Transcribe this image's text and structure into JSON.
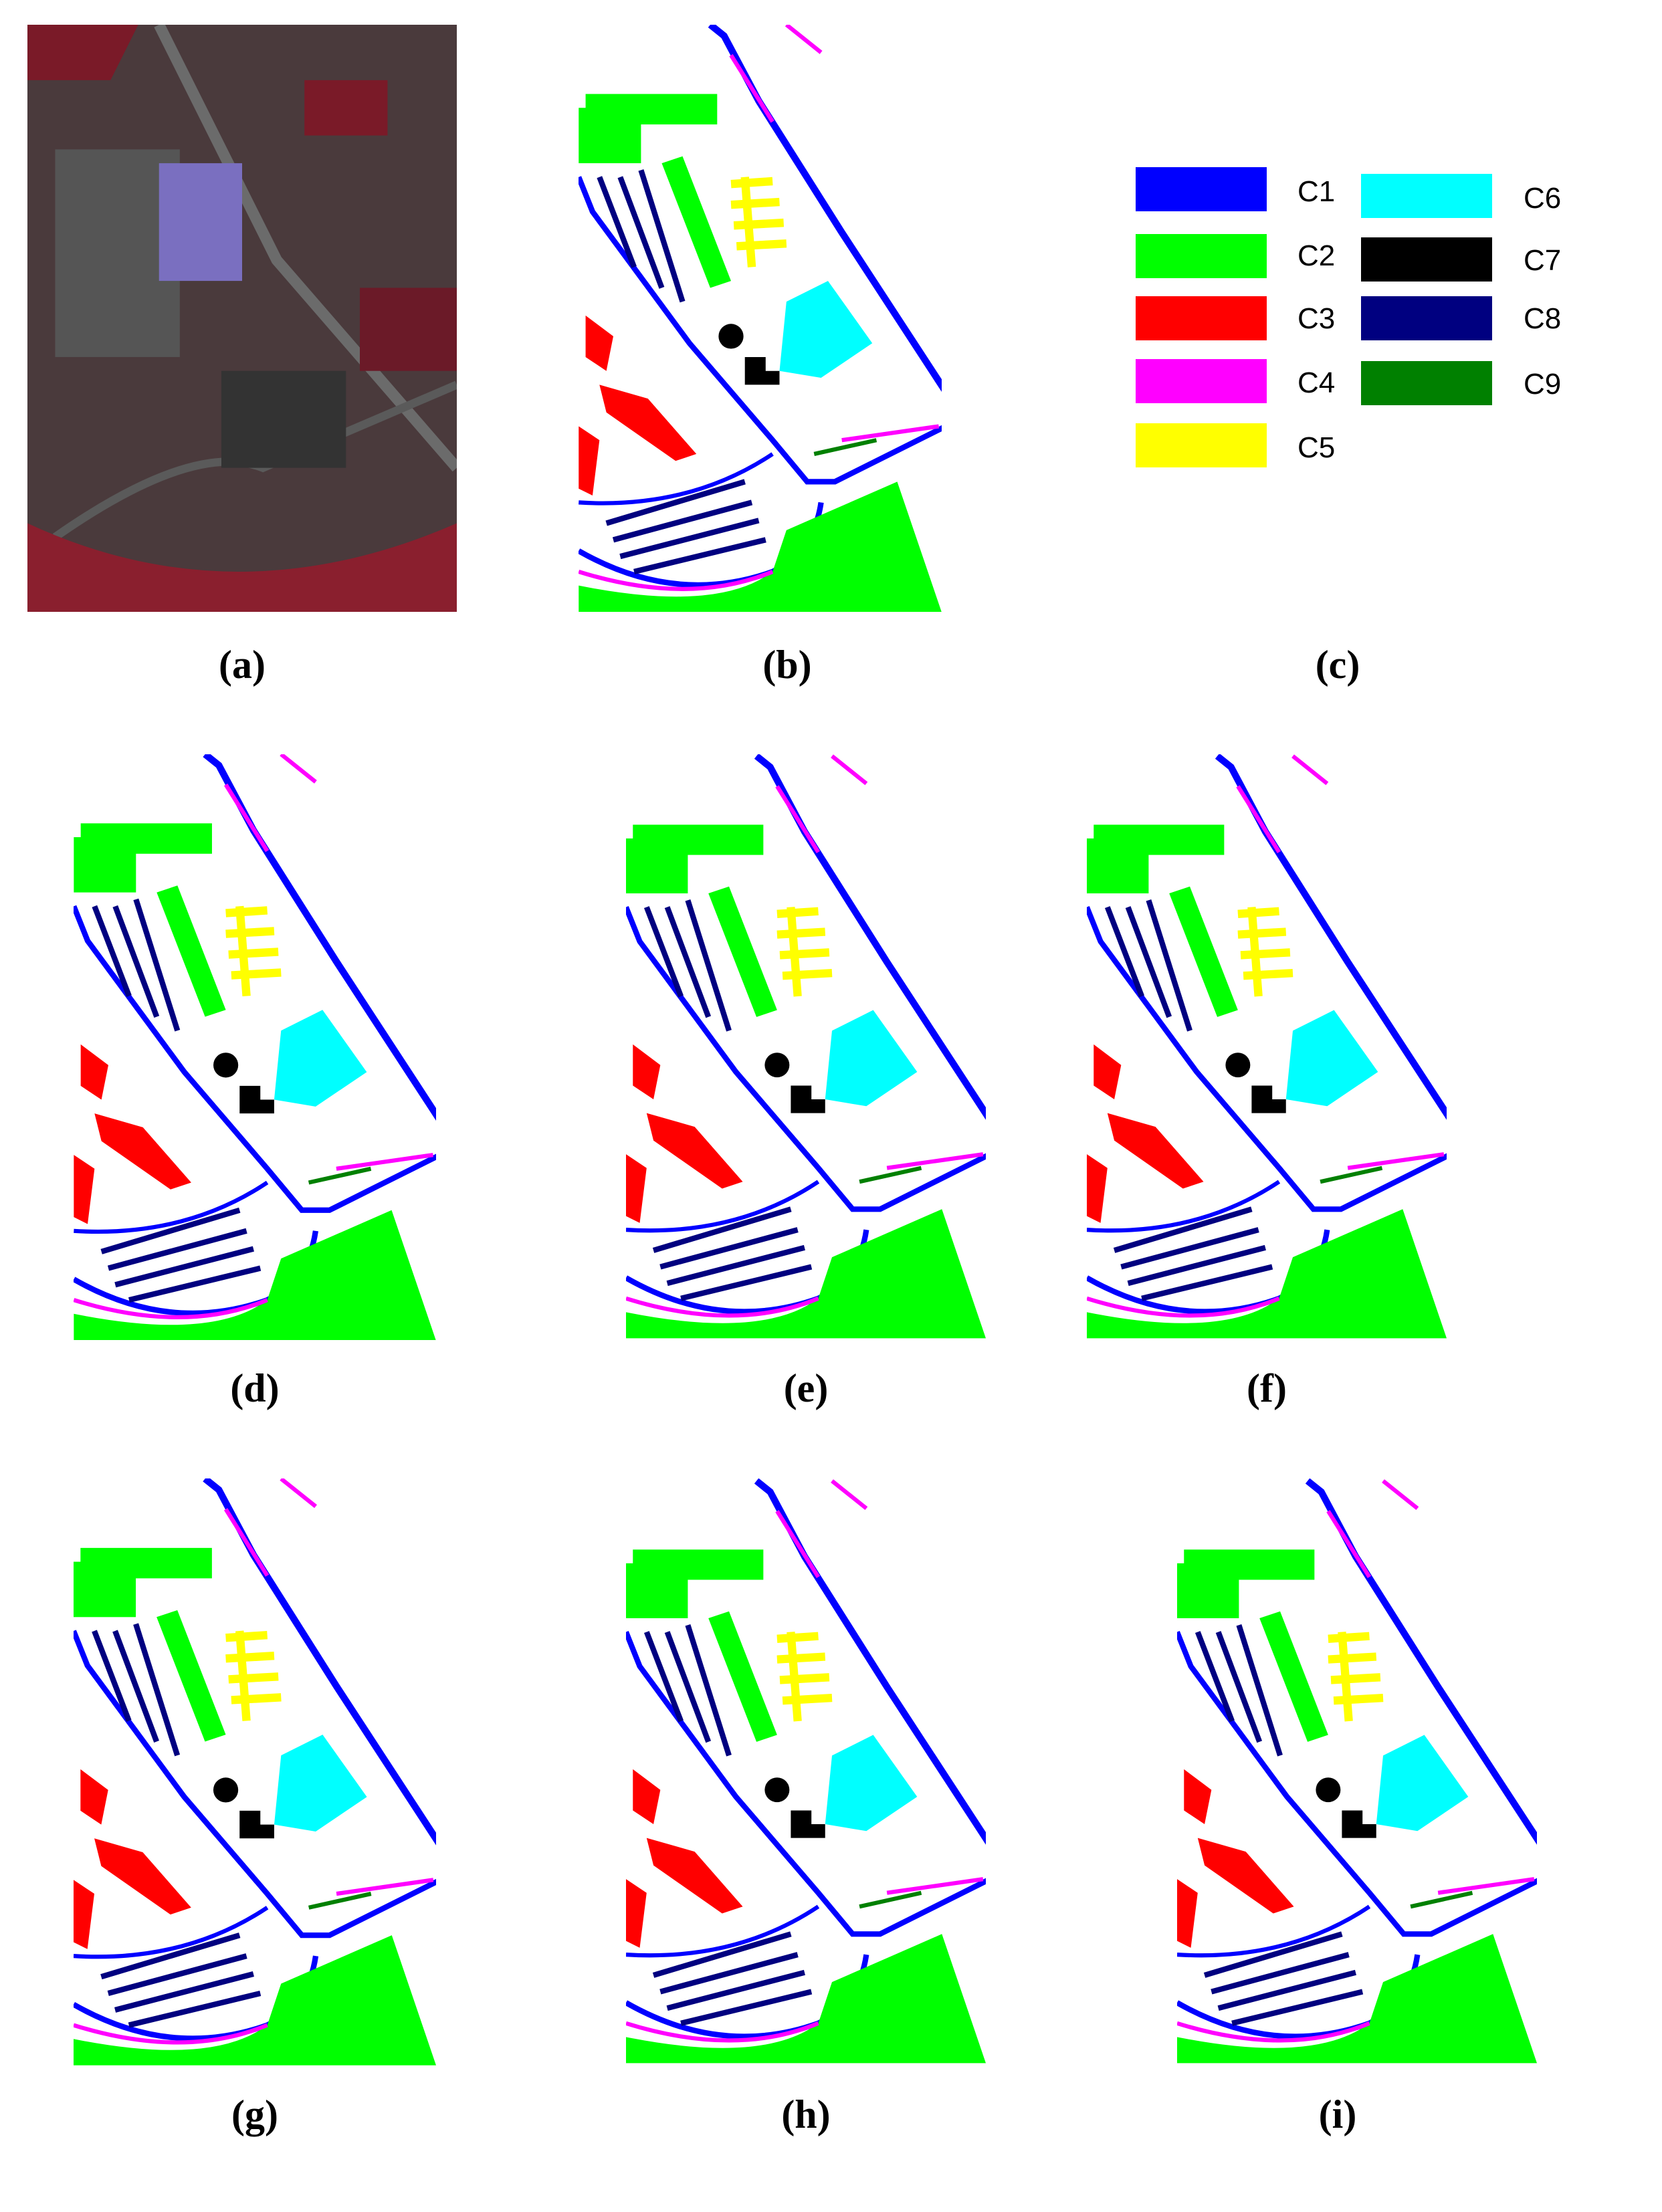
{
  "panels": [
    {
      "label": "(a)"
    },
    {
      "label": "(b)"
    },
    {
      "label": "(c)"
    },
    {
      "label": "(d)"
    },
    {
      "label": "(e)"
    },
    {
      "label": "(f)"
    },
    {
      "label": "(g)"
    },
    {
      "label": "(h)"
    },
    {
      "label": "(i)"
    }
  ],
  "legend": [
    {
      "name": "C1",
      "color": "#0000ff"
    },
    {
      "name": "C2",
      "color": "#00ff00"
    },
    {
      "name": "C3",
      "color": "#ff0000"
    },
    {
      "name": "C4",
      "color": "#ff00ff"
    },
    {
      "name": "C5",
      "color": "#ffff00"
    },
    {
      "name": "C6",
      "color": "#00ffff"
    },
    {
      "name": "C7",
      "color": "#000000"
    },
    {
      "name": "C8",
      "color": "#000080"
    },
    {
      "name": "C9",
      "color": "#008000"
    }
  ]
}
